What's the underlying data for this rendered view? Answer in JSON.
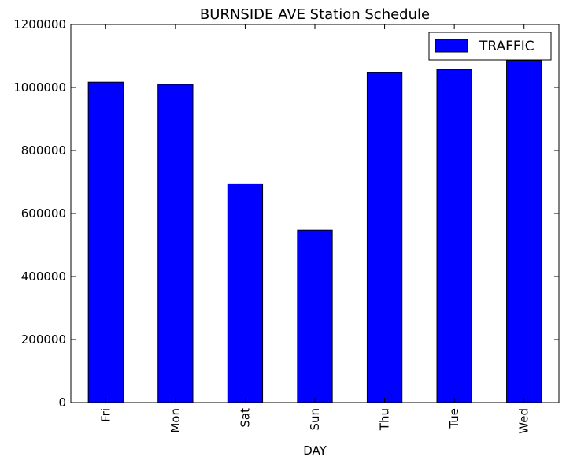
{
  "chart_data": {
    "type": "bar",
    "title": "BURNSIDE AVE Station Schedule",
    "xlabel": "DAY",
    "ylabel": "",
    "categories": [
      "Fri",
      "Mon",
      "Sat",
      "Sun",
      "Thu",
      "Tue",
      "Wed"
    ],
    "series": [
      {
        "name": "TRAFFIC",
        "values": [
          1017000,
          1010000,
          694000,
          547000,
          1047000,
          1057000,
          1085000
        ],
        "color": "#0000ff"
      }
    ],
    "ylim": [
      0,
      1200000
    ],
    "yticks": [
      0,
      200000,
      400000,
      600000,
      800000,
      1000000,
      1200000
    ],
    "ytick_labels": [
      "0",
      "200000",
      "400000",
      "600000",
      "800000",
      "1000000",
      "1200000"
    ],
    "grid": false,
    "legend_position": "top-right",
    "edge_color": "#000000"
  }
}
